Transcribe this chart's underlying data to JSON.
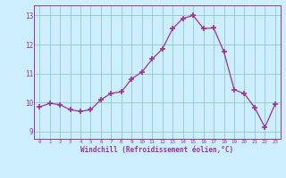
{
  "x": [
    0,
    1,
    2,
    3,
    4,
    5,
    6,
    7,
    8,
    9,
    10,
    11,
    12,
    13,
    14,
    15,
    16,
    17,
    18,
    19,
    20,
    21,
    22,
    23
  ],
  "y": [
    9.85,
    9.97,
    9.93,
    9.75,
    9.7,
    9.75,
    10.1,
    10.32,
    10.37,
    10.82,
    11.05,
    11.5,
    11.85,
    12.55,
    12.9,
    13.0,
    12.55,
    12.57,
    11.75,
    10.45,
    10.3,
    9.83,
    9.15,
    9.95
  ],
  "line_color": "#993399",
  "marker_color": "#993399",
  "bg_color": "#cceeff",
  "grid_color": "#99cccc",
  "tick_color": "#993399",
  "xlabel": "Windchill (Refroidissement éolien,°C)",
  "ylim": [
    8.75,
    13.35
  ],
  "xlim": [
    -0.5,
    23.5
  ],
  "yticks": [
    9,
    10,
    11,
    12,
    13
  ],
  "xticks": [
    0,
    1,
    2,
    3,
    4,
    5,
    6,
    7,
    8,
    9,
    10,
    11,
    12,
    13,
    14,
    15,
    16,
    17,
    18,
    19,
    20,
    21,
    22,
    23
  ]
}
